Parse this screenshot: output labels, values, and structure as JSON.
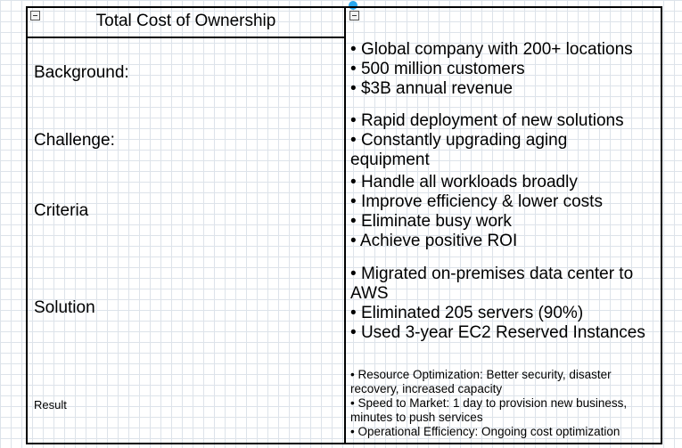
{
  "header": {
    "title": "Total Cost of Ownership"
  },
  "rows": [
    {
      "label": "Background:",
      "items": [
        "Global company with 200+ locations",
        "500 million customers",
        "$3B annual revenue"
      ]
    },
    {
      "label": "Challenge:",
      "items": [
        "Rapid deployment of new solutions",
        "Constantly upgrading aging equipment"
      ]
    },
    {
      "label": "Criteria",
      "items": [
        "Handle all workloads broadly",
        "Improve efficiency & lower costs",
        "Eliminate busy work",
        "Achieve positive ROI"
      ]
    },
    {
      "label": "Solution",
      "items": [
        "Migrated on-premises data center to AWS",
        "Eliminated 205 servers (90%)",
        "Used 3-year EC2 Reserved Instances"
      ]
    },
    {
      "label": "Result",
      "items": [
        "Resource Optimization: Better security, disaster recovery, increased capacity",
        "Speed to Market: 1 day to provision new business, minutes to push services",
        "Operational Efficiency: Ongoing cost optimization"
      ]
    }
  ]
}
